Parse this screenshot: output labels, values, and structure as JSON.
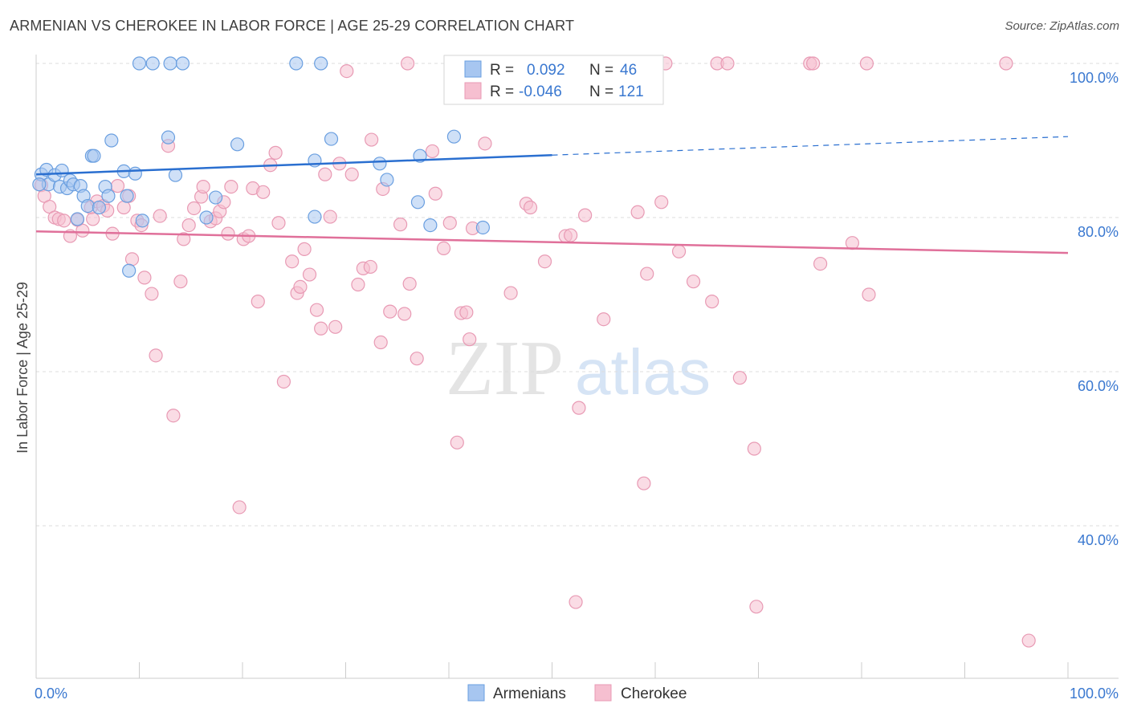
{
  "header": {
    "title": "ARMENIAN VS CHEROKEE IN LABOR FORCE | AGE 25-29 CORRELATION CHART",
    "source": "Source: ZipAtlas.com"
  },
  "watermark": {
    "zip": "ZIP",
    "atlas": "atlas"
  },
  "legend_box": {
    "armenians": {
      "r_label": "R =",
      "r_value": "0.092",
      "n_label": "N =",
      "n_value": "46"
    },
    "cherokee": {
      "r_label": "R =",
      "r_value": "-0.046",
      "n_label": "N =",
      "n_value": "121"
    }
  },
  "chart_data": {
    "type": "scatter",
    "title": "ARMENIAN VS CHEROKEE IN LABOR FORCE | AGE 25-29 CORRELATION CHART",
    "xlabel": "",
    "ylabel": "In Labor Force | Age 25-29",
    "x_tick_labels": [
      "0.0%",
      "100.0%"
    ],
    "y_tick_labels": [
      "100.0%",
      "80.0%",
      "60.0%",
      "40.0%"
    ],
    "y_ticks": [
      100,
      80,
      60,
      40
    ],
    "xlim": [
      0,
      100
    ],
    "ylim": [
      20,
      102
    ],
    "grid": true,
    "legend_position": "bottom-center",
    "colors": {
      "armenians_fill": "#a7c6f0",
      "armenians_stroke": "#6a9fe0",
      "armenians_line": "#2a6fd0",
      "cherokee_fill": "#f6bfd0",
      "cherokee_stroke": "#e89ab4",
      "cherokee_line": "#e0709a",
      "value_text": "#3a78d0",
      "grid": "#dddddd"
    },
    "series": [
      {
        "name": "Armenians",
        "trend": {
          "x0": 0,
          "y0": 85.6,
          "x1": 50,
          "y1": 88.1,
          "dashed_to_x": 100,
          "dashed_to_y": 90.5
        },
        "points": [
          [
            0.5,
            85.6
          ],
          [
            1.0,
            86.2
          ],
          [
            1.2,
            84.3
          ],
          [
            1.8,
            85.5
          ],
          [
            2.3,
            84.0
          ],
          [
            2.5,
            86.1
          ],
          [
            3.0,
            83.8
          ],
          [
            3.3,
            84.8
          ],
          [
            3.6,
            84.3
          ],
          [
            4.0,
            79.8
          ],
          [
            4.3,
            84.1
          ],
          [
            4.6,
            82.8
          ],
          [
            5.0,
            81.5
          ],
          [
            5.4,
            88.0
          ],
          [
            5.6,
            88.0
          ],
          [
            6.1,
            81.3
          ],
          [
            6.7,
            84.0
          ],
          [
            7.0,
            82.8
          ],
          [
            7.3,
            90.0
          ],
          [
            8.5,
            86.0
          ],
          [
            8.8,
            82.8
          ],
          [
            9.0,
            73.1
          ],
          [
            9.6,
            85.7
          ],
          [
            10.3,
            79.6
          ],
          [
            10.0,
            100.0
          ],
          [
            11.3,
            100.0
          ],
          [
            13.0,
            100.0
          ],
          [
            14.2,
            100.0
          ],
          [
            12.8,
            90.4
          ],
          [
            13.5,
            85.5
          ],
          [
            16.5,
            80.0
          ],
          [
            17.4,
            82.6
          ],
          [
            19.5,
            89.5
          ],
          [
            25.2,
            100.0
          ],
          [
            27.0,
            87.4
          ],
          [
            27.0,
            80.1
          ],
          [
            27.6,
            100.0
          ],
          [
            28.6,
            90.2
          ],
          [
            33.3,
            87.0
          ],
          [
            34.0,
            84.9
          ],
          [
            37.0,
            82.0
          ],
          [
            37.2,
            88.0
          ],
          [
            38.2,
            79.0
          ],
          [
            40.5,
            90.5
          ],
          [
            43.3,
            78.7
          ],
          [
            0.3,
            84.3
          ]
        ]
      },
      {
        "name": "Cherokee",
        "trend": {
          "x0": 0,
          "y0": 78.2,
          "x1": 100,
          "y1": 75.4
        },
        "points": [
          [
            0.5,
            84.2
          ],
          [
            0.8,
            82.8
          ],
          [
            1.3,
            81.4
          ],
          [
            1.8,
            80.0
          ],
          [
            2.2,
            79.8
          ],
          [
            2.7,
            79.6
          ],
          [
            3.3,
            77.6
          ],
          [
            4.0,
            79.7
          ],
          [
            4.5,
            78.3
          ],
          [
            5.3,
            81.3
          ],
          [
            5.5,
            79.8
          ],
          [
            5.9,
            82.1
          ],
          [
            6.5,
            81.5
          ],
          [
            6.9,
            80.9
          ],
          [
            7.4,
            77.9
          ],
          [
            7.9,
            84.1
          ],
          [
            8.5,
            81.3
          ],
          [
            9.0,
            82.8
          ],
          [
            9.3,
            74.6
          ],
          [
            9.8,
            79.6
          ],
          [
            10.2,
            79.0
          ],
          [
            10.5,
            72.2
          ],
          [
            11.2,
            70.1
          ],
          [
            11.6,
            62.1
          ],
          [
            12.0,
            80.2
          ],
          [
            12.8,
            89.3
          ],
          [
            13.3,
            54.3
          ],
          [
            14.0,
            71.7
          ],
          [
            14.3,
            77.2
          ],
          [
            14.8,
            79.0
          ],
          [
            15.3,
            81.2
          ],
          [
            16.0,
            82.7
          ],
          [
            16.2,
            84.0
          ],
          [
            16.9,
            79.5
          ],
          [
            17.4,
            79.9
          ],
          [
            17.8,
            80.8
          ],
          [
            18.2,
            82.0
          ],
          [
            18.6,
            77.9
          ],
          [
            18.9,
            84.0
          ],
          [
            19.7,
            42.4
          ],
          [
            20.1,
            77.2
          ],
          [
            20.6,
            77.6
          ],
          [
            21.0,
            83.8
          ],
          [
            21.5,
            69.1
          ],
          [
            22.0,
            83.3
          ],
          [
            22.7,
            86.8
          ],
          [
            23.2,
            88.4
          ],
          [
            23.5,
            79.3
          ],
          [
            24.0,
            58.7
          ],
          [
            24.8,
            74.3
          ],
          [
            25.3,
            70.2
          ],
          [
            25.6,
            71.0
          ],
          [
            26.0,
            75.9
          ],
          [
            26.5,
            72.6
          ],
          [
            27.2,
            68.0
          ],
          [
            27.6,
            65.6
          ],
          [
            28.0,
            85.6
          ],
          [
            28.5,
            80.1
          ],
          [
            29.0,
            65.8
          ],
          [
            29.4,
            87.0
          ],
          [
            30.1,
            99.0
          ],
          [
            30.6,
            85.6
          ],
          [
            31.2,
            71.3
          ],
          [
            31.7,
            73.4
          ],
          [
            32.4,
            73.6
          ],
          [
            32.5,
            90.1
          ],
          [
            33.4,
            63.8
          ],
          [
            33.6,
            83.7
          ],
          [
            34.3,
            67.8
          ],
          [
            35.3,
            79.1
          ],
          [
            35.7,
            67.5
          ],
          [
            36.2,
            71.4
          ],
          [
            36.9,
            61.7
          ],
          [
            38.4,
            88.6
          ],
          [
            38.7,
            83.1
          ],
          [
            39.5,
            76.0
          ],
          [
            40.1,
            79.3
          ],
          [
            40.8,
            50.8
          ],
          [
            41.2,
            67.6
          ],
          [
            41.7,
            67.7
          ],
          [
            42.0,
            64.2
          ],
          [
            42.3,
            78.6
          ],
          [
            43.5,
            89.6
          ],
          [
            46.0,
            70.2
          ],
          [
            47.5,
            81.8
          ],
          [
            47.9,
            81.3
          ],
          [
            49.3,
            74.3
          ],
          [
            51.3,
            77.6
          ],
          [
            51.8,
            77.7
          ],
          [
            52.3,
            30.1
          ],
          [
            52.6,
            55.3
          ],
          [
            53.2,
            80.3
          ],
          [
            55.0,
            66.8
          ],
          [
            58.3,
            80.7
          ],
          [
            58.9,
            45.5
          ],
          [
            59.2,
            72.7
          ],
          [
            60.6,
            82.0
          ],
          [
            62.3,
            75.6
          ],
          [
            63.7,
            71.7
          ],
          [
            65.5,
            69.1
          ],
          [
            68.2,
            59.2
          ],
          [
            69.6,
            50.0
          ],
          [
            69.8,
            29.5
          ],
          [
            76.0,
            74.0
          ],
          [
            79.1,
            76.7
          ],
          [
            80.7,
            70.0
          ],
          [
            96.2,
            25.1
          ],
          [
            36.0,
            100.0
          ],
          [
            46.0,
            100.0
          ],
          [
            50.0,
            100.0
          ],
          [
            53.0,
            100.0
          ],
          [
            55.0,
            100.0
          ],
          [
            56.0,
            98.0
          ],
          [
            60.0,
            100.0
          ],
          [
            61.0,
            100.0
          ],
          [
            66.0,
            100.0
          ],
          [
            67.0,
            100.0
          ],
          [
            75.0,
            100.0
          ],
          [
            75.3,
            100.0
          ],
          [
            80.5,
            100.0
          ],
          [
            94.0,
            100.0
          ]
        ]
      }
    ]
  },
  "bottom_legend": [
    {
      "label": "Armenians"
    },
    {
      "label": "Cherokee"
    }
  ]
}
